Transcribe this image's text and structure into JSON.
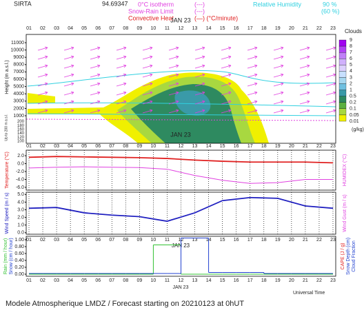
{
  "header": {
    "station": "SIRTA",
    "code": "94.69347",
    "isotherm": "0°C isotherm",
    "isotherm_key": "(---)",
    "snow_limit": "Snow-Rain Limit",
    "snow_limit_key": "(---)",
    "convective": "Convective Heat",
    "convective_key": "(—) (°C/minute)",
    "humidity": "Relative Humidity",
    "humidity_90": "90 %",
    "humidity_60": "(60 %)"
  },
  "time_axis": {
    "date": "JAN 23",
    "label": "Universal Time",
    "xlim": [
      0.8,
      23.2
    ],
    "ticks": [
      {
        "value": 1,
        "label": "01"
      },
      {
        "value": 2,
        "label": "02"
      },
      {
        "value": 3,
        "label": "03"
      },
      {
        "value": 4,
        "label": "04"
      },
      {
        "value": 5,
        "label": "05"
      },
      {
        "value": 6,
        "label": "06"
      },
      {
        "value": 7,
        "label": "07"
      },
      {
        "value": 8,
        "label": "08"
      },
      {
        "value": 9,
        "label": "09"
      },
      {
        "value": 10,
        "label": "10"
      },
      {
        "value": 11,
        "label": "11"
      },
      {
        "value": 12,
        "label": "12"
      },
      {
        "value": 13,
        "label": "13"
      },
      {
        "value": 14,
        "label": "14"
      },
      {
        "value": 15,
        "label": "15"
      },
      {
        "value": 16,
        "label": "16"
      },
      {
        "value": 17,
        "label": "17"
      },
      {
        "value": 18,
        "label": "18"
      },
      {
        "value": 19,
        "label": "19"
      },
      {
        "value": 20,
        "label": "20"
      },
      {
        "value": 21,
        "label": "21"
      },
      {
        "value": 22,
        "label": "22"
      },
      {
        "value": 23,
        "label": "23"
      }
    ]
  },
  "chart_data": [
    {
      "type": "contour",
      "y_label": "Height (m a.s.l.)",
      "lower_label": "Up to 200 m a.s.l.",
      "ylim": [
        530,
        12130
      ],
      "yticks": [
        1000,
        2000,
        3000,
        4000,
        5000,
        6000,
        7000,
        8000,
        9000,
        10000,
        11000
      ],
      "lower_ylim": [
        90,
        205
      ],
      "lower_yticks": [
        100,
        120,
        140,
        160,
        180,
        200
      ],
      "colorbar": {
        "title": "Clouds",
        "unit": "(g/kg)",
        "ticks": [
          9,
          8,
          7,
          6,
          5,
          4,
          3,
          2,
          1,
          0.5,
          0.2,
          0.1,
          0.05,
          0.01
        ],
        "colors": [
          "#a000f0",
          "#b040f4",
          "#c080f8",
          "#d0b0fc",
          "#dcd0ff",
          "#c8e0ff",
          "#a8d8f0",
          "#70c0e0",
          "#3a9aa8",
          "#2e8a60",
          "#5cb040",
          "#a8d840",
          "#f0f000"
        ]
      }
    },
    {
      "type": "line",
      "ylim": [
        -6.7,
        3.4
      ],
      "yticks": [
        {
          "value": -6,
          "label": "-6.0"
        },
        {
          "value": -4,
          "label": "-4.0"
        },
        {
          "value": -2,
          "label": "-2.0"
        },
        {
          "value": 0,
          "label": "0.0"
        },
        {
          "value": 2,
          "label": "2.0"
        }
      ],
      "y2_label": "HUMIDEX (°C)",
      "y2_color": "#e040e0",
      "series": [
        {
          "name": "Temperature (°C)",
          "color": "#e02020",
          "x": [
            1,
            3,
            5,
            7,
            9,
            11,
            13,
            15,
            17,
            19,
            21,
            23
          ],
          "values": [
            1.6,
            1.8,
            1.7,
            1.6,
            1.5,
            1.3,
            0.9,
            0.6,
            0.4,
            0.4,
            0.4,
            0.2
          ]
        },
        {
          "name": "HUMIDEX (°C)",
          "color": "#e040e0",
          "x": [
            1,
            3,
            5,
            7,
            9,
            11,
            13,
            15,
            17,
            19,
            21,
            23
          ],
          "values": [
            -1.1,
            -0.9,
            -0.8,
            -0.9,
            -1.0,
            -1.4,
            -3.0,
            -4.2,
            -5.0,
            -4.8,
            -4.0,
            -4.0
          ]
        }
      ]
    },
    {
      "type": "line",
      "ylim": [
        -0.2,
        5.3
      ],
      "yticks": [
        {
          "value": 0,
          "label": "0.0"
        },
        {
          "value": 1,
          "label": "1.0"
        },
        {
          "value": 2,
          "label": "2.0"
        },
        {
          "value": 3,
          "label": "3.0"
        },
        {
          "value": 4,
          "label": "4.0"
        },
        {
          "value": 5,
          "label": "5.0"
        }
      ],
      "y2_label": "Wind Gust (m / s)",
      "y2_color": "#e040e0",
      "series": [
        {
          "name": "Wind Speed (m / s)",
          "color": "#2020c0",
          "x": [
            1,
            3,
            5,
            7,
            9,
            11,
            13,
            15,
            17,
            19,
            21,
            23
          ],
          "values": [
            3.2,
            3.3,
            2.6,
            2.3,
            2.1,
            1.5,
            2.6,
            4.2,
            4.6,
            4.5,
            3.5,
            3.2
          ]
        }
      ]
    },
    {
      "type": "step",
      "ylim": [
        -0.06,
        1.1
      ],
      "yticks": [
        {
          "value": 0,
          "label": "0.00"
        },
        {
          "value": 0.2,
          "label": "0.20"
        },
        {
          "value": 0.4,
          "label": "0.40"
        },
        {
          "value": 0.6,
          "label": "0.60"
        },
        {
          "value": 0.8,
          "label": "0.80"
        },
        {
          "value": 1,
          "label": "1.00"
        }
      ],
      "y_extra_label": "Snow (cm / hour)",
      "y_extra_color": "#2040d0",
      "y2_labels": [
        {
          "text": "CAPE (J / g)",
          "color": "#e02020"
        },
        {
          "text": "Snow Depth (cm)",
          "color": "#2040d0"
        },
        {
          "text": "Cloud Fraction",
          "color": "#2040d0"
        }
      ],
      "series": [
        {
          "name": "Rain (mm / hour)",
          "color": "#30c030",
          "x": [
            1,
            2,
            3,
            4,
            5,
            6,
            7,
            8,
            9,
            10,
            11,
            12,
            13,
            14,
            15,
            16,
            17,
            18,
            19,
            20,
            21,
            22
          ],
          "values": [
            0,
            0,
            0,
            0,
            0,
            0,
            0,
            0,
            0,
            0.85,
            0.85,
            0,
            0,
            0,
            0,
            0,
            0,
            0,
            0,
            0,
            0,
            0
          ]
        },
        {
          "name": "Cloud Fraction",
          "color": "#2040d0",
          "x": [
            1,
            2,
            3,
            4,
            5,
            6,
            7,
            8,
            9,
            10,
            11,
            12,
            13,
            14,
            15,
            16,
            17,
            18,
            19,
            20,
            21,
            22
          ],
          "values": [
            0.02,
            0.02,
            0.02,
            0.02,
            0.02,
            0.02,
            0.02,
            0.02,
            0.02,
            0.02,
            0.02,
            1.05,
            1.05,
            0.05,
            0.05,
            0.05,
            0.05,
            0.02,
            0.02,
            0.02,
            0.02,
            0.02
          ]
        }
      ]
    }
  ],
  "footer": "Modele Atmospherique LMDZ / Forecast starting on 20210123 at 0hUT"
}
